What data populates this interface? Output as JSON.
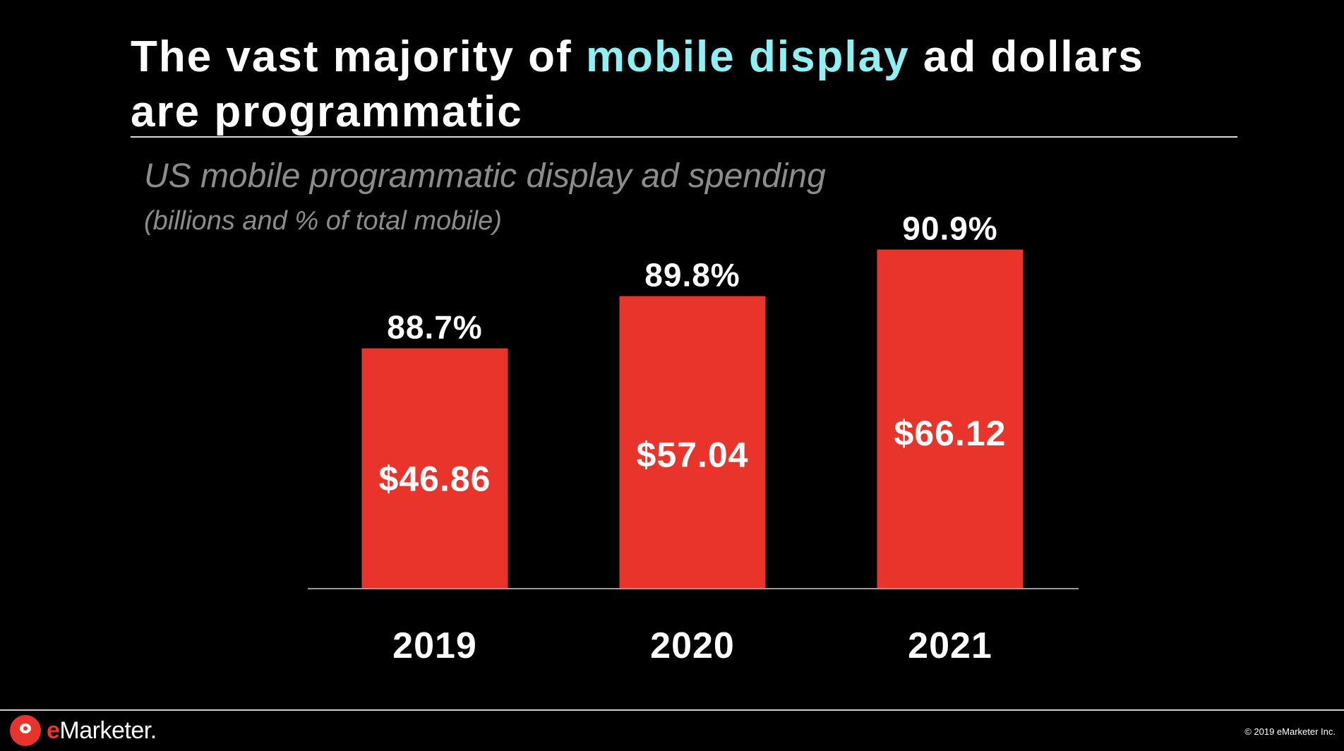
{
  "title": {
    "part1": "The vast majority of ",
    "highlight": "mobile display",
    "part2": " ad dollars",
    "line2": "are programmatic",
    "highlight_color": "#8ff0f4"
  },
  "subtitle": "US mobile programmatic display ad spending",
  "subnote": "(billions and % of total mobile)",
  "chart_data": {
    "type": "bar",
    "title": "US mobile programmatic display ad spending",
    "subtitle": "(billions and % of total mobile)",
    "categories": [
      "2019",
      "2020",
      "2021"
    ],
    "values": [
      46.86,
      57.04,
      66.12
    ],
    "value_labels": [
      "$46.86",
      "$57.04",
      "$66.12"
    ],
    "share_of_total_mobile_pct": [
      88.7,
      89.8,
      90.9
    ],
    "share_labels": [
      "88.7%",
      "89.8%",
      "90.9%"
    ],
    "bar_color": "#e8342a",
    "xlabel": "",
    "ylabel": "",
    "grid": false
  },
  "footer": {
    "logo_e": "e",
    "logo_rest": "Marketer",
    "logo_mark": ".",
    "copyright": "© 2019 eMarketer Inc."
  }
}
